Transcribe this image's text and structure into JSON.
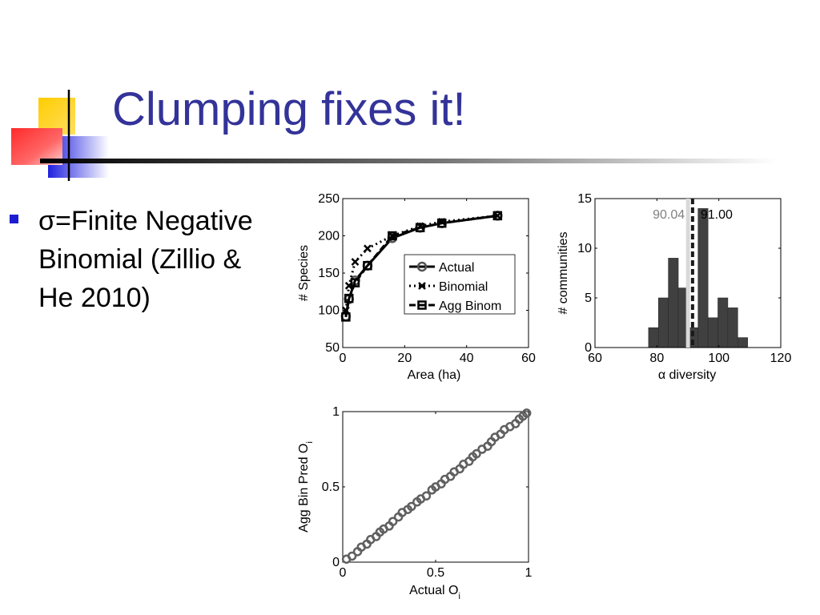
{
  "slide": {
    "title": "Clumping fixes it!",
    "bullet_symbol": "σ",
    "bullet_text": "=Finite Negative Binomial (Zillio & He 2010)",
    "colors": {
      "title": "#333399",
      "bullet": "#1c1cd0"
    },
    "decoration_icon": "office-accent-squares-icon"
  },
  "chart_data": [
    {
      "type": "line",
      "xlabel": "Area (ha)",
      "ylabel": "# Species",
      "xlim": [
        0,
        60
      ],
      "ylim": [
        50,
        250
      ],
      "xticks": [
        "0",
        "20",
        "40",
        "60"
      ],
      "yticks": [
        "50",
        "100",
        "150",
        "200",
        "250"
      ],
      "legend_position": "center-right",
      "series": [
        {
          "name": "Actual",
          "marker": "circle",
          "style": "solid",
          "x": [
            1,
            2,
            4,
            8,
            16,
            25,
            32,
            50
          ],
          "y": [
            92,
            115,
            140,
            160,
            197,
            211,
            217,
            227
          ]
        },
        {
          "name": "Binomial",
          "marker": "x",
          "style": "dotted",
          "x": [
            1,
            2,
            4,
            8,
            16,
            25,
            32,
            50
          ],
          "y": [
            100,
            133,
            165,
            183,
            200,
            213,
            219,
            227
          ]
        },
        {
          "name": "Agg Binom",
          "marker": "square",
          "style": "dashed",
          "x": [
            1,
            2,
            4,
            8,
            16,
            25,
            32,
            50
          ],
          "y": [
            91,
            116,
            137,
            160,
            200,
            211,
            217,
            227
          ]
        }
      ]
    },
    {
      "type": "bar",
      "xlabel": "α diversity",
      "ylabel": "# communities",
      "xlim": [
        60,
        120
      ],
      "ylim": [
        0,
        15
      ],
      "xticks": [
        "60",
        "80",
        "100",
        "120"
      ],
      "yticks": [
        "0",
        "5",
        "10",
        "15"
      ],
      "bin_width": 3.2,
      "bins": [
        77.3,
        80.5,
        83.7,
        86.9,
        90.1,
        93.3,
        96.5,
        99.7,
        102.9,
        106.1
      ],
      "values": [
        2,
        5,
        9,
        6,
        2,
        14,
        3,
        5,
        4,
        1
      ],
      "bar_color": "#404040",
      "annotations": [
        {
          "label": "90.04",
          "value": 90.04,
          "color": "#808080"
        },
        {
          "label": "91.00",
          "value": 91.0,
          "color": "#000000"
        }
      ]
    },
    {
      "type": "scatter",
      "xlabel": "Actual O",
      "xlabel_sub": "i",
      "ylabel": "Agg Bin Pred O",
      "ylabel_sub": "i",
      "xlim": [
        0,
        1
      ],
      "ylim": [
        0,
        1
      ],
      "xticks": [
        "0",
        "0.5",
        "1"
      ],
      "yticks": [
        "0",
        "0.5",
        "1"
      ],
      "marker": "circle",
      "point_color": "#606060",
      "x": [
        0.02,
        0.05,
        0.08,
        0.1,
        0.13,
        0.15,
        0.18,
        0.2,
        0.22,
        0.25,
        0.27,
        0.3,
        0.32,
        0.35,
        0.37,
        0.4,
        0.42,
        0.45,
        0.48,
        0.5,
        0.53,
        0.55,
        0.58,
        0.6,
        0.63,
        0.65,
        0.68,
        0.7,
        0.72,
        0.75,
        0.78,
        0.8,
        0.82,
        0.85,
        0.87,
        0.9,
        0.93,
        0.95,
        0.97,
        0.99
      ],
      "y": [
        0.02,
        0.04,
        0.07,
        0.1,
        0.12,
        0.15,
        0.17,
        0.2,
        0.22,
        0.24,
        0.27,
        0.3,
        0.33,
        0.35,
        0.37,
        0.4,
        0.42,
        0.44,
        0.48,
        0.5,
        0.52,
        0.55,
        0.57,
        0.6,
        0.62,
        0.65,
        0.67,
        0.7,
        0.72,
        0.75,
        0.77,
        0.8,
        0.83,
        0.85,
        0.88,
        0.9,
        0.92,
        0.95,
        0.97,
        0.99
      ]
    }
  ]
}
